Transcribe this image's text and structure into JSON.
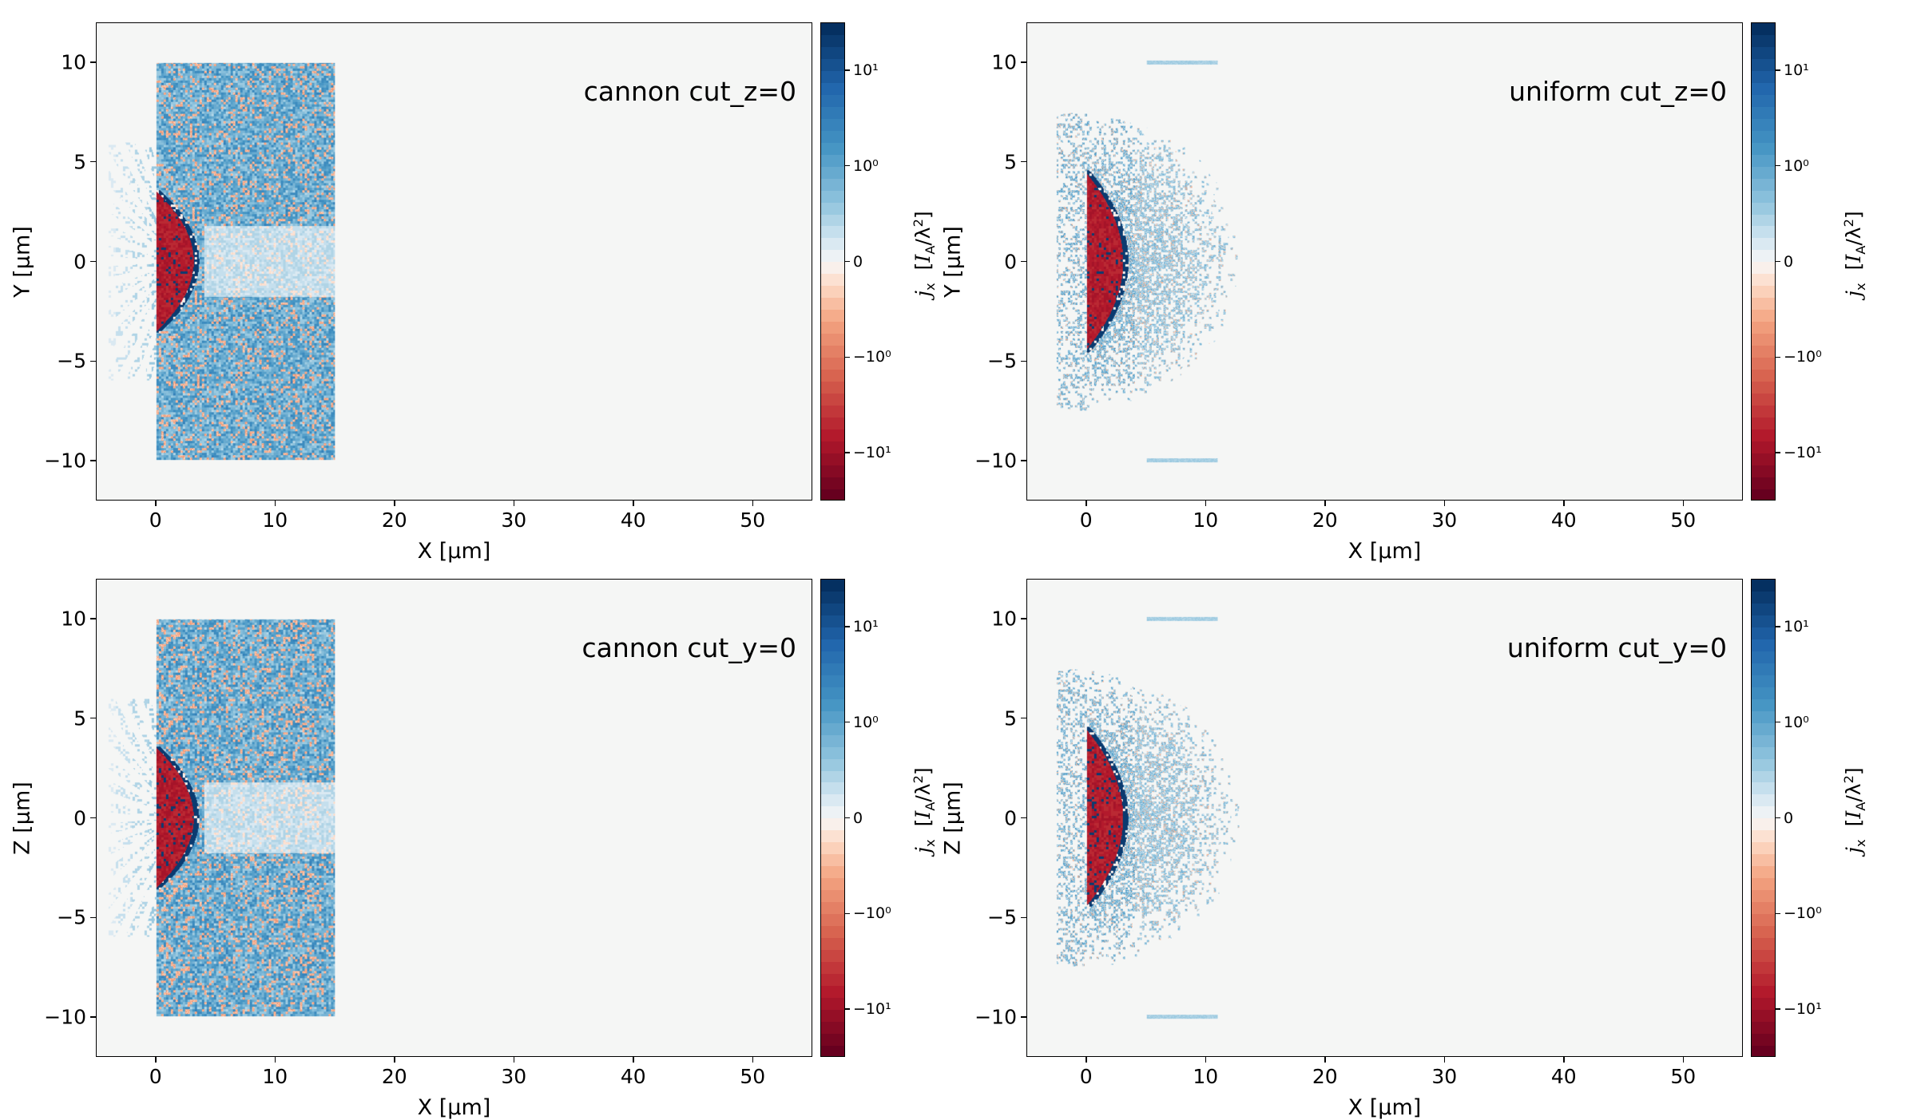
{
  "chart_data": [
    {
      "type": "heatmap",
      "pattern": "cannon",
      "title": "cannon cut_z=0",
      "xlabel": "X  [μm]",
      "ylabel": "Y  [μm]",
      "xlim": [
        -5,
        55
      ],
      "ylim": [
        -12,
        12
      ],
      "xticks": [
        0,
        10,
        20,
        30,
        40,
        50
      ],
      "yticks": [
        10,
        5,
        0,
        -5,
        -10
      ],
      "xtick_labels": [
        "0",
        "10",
        "20",
        "30",
        "40",
        "50"
      ],
      "ytick_labels": [
        "10",
        "5",
        "0",
        "−5",
        "−10"
      ]
    },
    {
      "type": "heatmap",
      "pattern": "uniform",
      "title": "uniform cut_z=0",
      "xlabel": "X  [μm]",
      "ylabel": "Y  [μm]",
      "xlim": [
        -5,
        55
      ],
      "ylim": [
        -12,
        12
      ],
      "xticks": [
        0,
        10,
        20,
        30,
        40,
        50
      ],
      "yticks": [
        10,
        5,
        0,
        -5,
        -10
      ],
      "xtick_labels": [
        "0",
        "10",
        "20",
        "30",
        "40",
        "50"
      ],
      "ytick_labels": [
        "10",
        "5",
        "0",
        "−5",
        "−10"
      ]
    },
    {
      "type": "heatmap",
      "pattern": "cannon",
      "title": "cannon cut_y=0",
      "xlabel": "X  [μm]",
      "ylabel": "Z  [μm]",
      "xlim": [
        -5,
        55
      ],
      "ylim": [
        -12,
        12
      ],
      "xticks": [
        0,
        10,
        20,
        30,
        40,
        50
      ],
      "yticks": [
        10,
        5,
        0,
        -5,
        -10
      ],
      "xtick_labels": [
        "0",
        "10",
        "20",
        "30",
        "40",
        "50"
      ],
      "ytick_labels": [
        "10",
        "5",
        "0",
        "−5",
        "−10"
      ]
    },
    {
      "type": "heatmap",
      "pattern": "uniform",
      "title": "uniform cut_y=0",
      "xlabel": "X  [μm]",
      "ylabel": "Z  [μm]",
      "xlim": [
        -5,
        55
      ],
      "ylim": [
        -12,
        12
      ],
      "xticks": [
        0,
        10,
        20,
        30,
        40,
        50
      ],
      "yticks": [
        10,
        5,
        0,
        -5,
        -10
      ],
      "xtick_labels": [
        "0",
        "10",
        "20",
        "30",
        "40",
        "50"
      ],
      "ytick_labels": [
        "10",
        "5",
        "0",
        "−5",
        "−10"
      ]
    }
  ],
  "colorbar": {
    "scale": "symlog",
    "levels": 40,
    "colormap": "RdBu",
    "ticks": [
      {
        "value": 10,
        "label": "10¹"
      },
      {
        "value": 1,
        "label": "10⁰"
      },
      {
        "value": 0,
        "label": "0"
      },
      {
        "value": -1,
        "label": "−10⁰"
      },
      {
        "value": -10,
        "label": "−10¹"
      }
    ],
    "label": {
      "var": "j",
      "var_sub": "x",
      "unit_open": "[",
      "unit": "I",
      "unit_sub": "A",
      "unit_rest": "/λ",
      "unit_sup": "2",
      "unit_close": "]"
    }
  },
  "colors": {
    "background": "#f5f6f5",
    "stops": [
      "#67001f",
      "#b2182b",
      "#d6604d",
      "#f4a582",
      "#fddbc7",
      "#f7f7f7",
      "#d1e5f0",
      "#92c5de",
      "#4393c3",
      "#2166ac",
      "#053061"
    ]
  }
}
